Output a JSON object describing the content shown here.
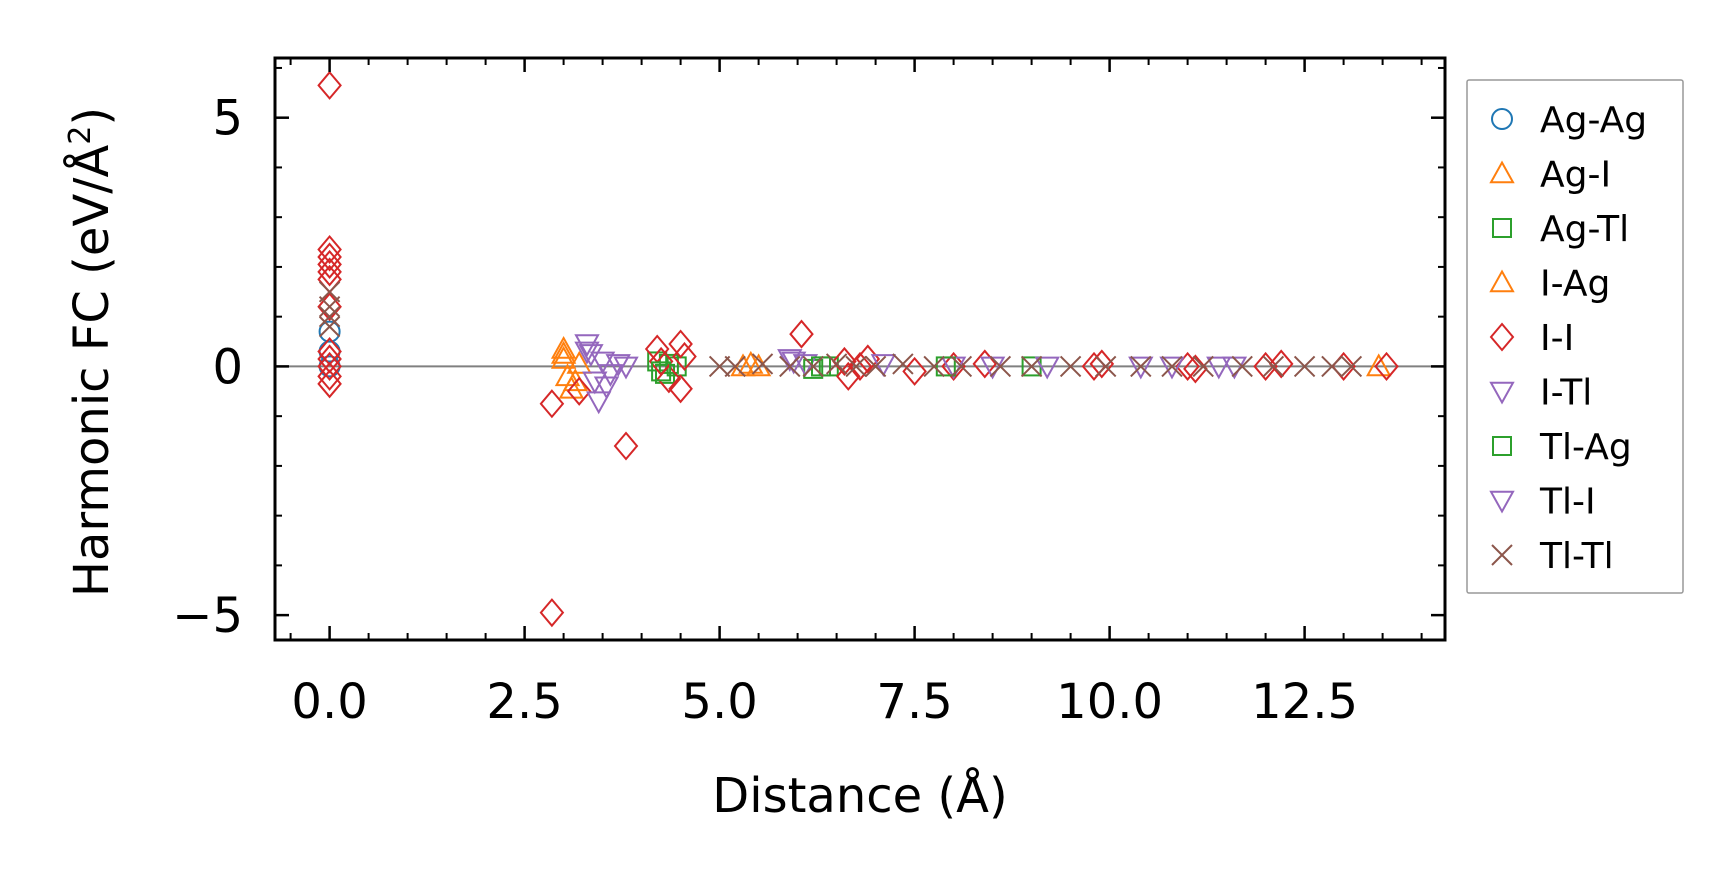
{
  "chart_data": {
    "type": "scatter",
    "title": "",
    "xlabel": "Distance (Å)",
    "ylabel_main": "Harmonic FC (eV/Å",
    "ylabel_sup": "2",
    "ylabel_close": ")",
    "xlim": [
      -0.7,
      14.3
    ],
    "ylim": [
      -5.5,
      6.2
    ],
    "x_ticks": [
      0.0,
      2.5,
      5.0,
      7.5,
      10.0,
      12.5
    ],
    "x_tick_labels": [
      "0.0",
      "2.5",
      "5.0",
      "7.5",
      "10.0",
      "12.5"
    ],
    "y_ticks": [
      -5,
      0,
      5
    ],
    "y_tick_labels": [
      "−5",
      "0",
      "5"
    ],
    "zero_line": true,
    "legend_position": "right, outside plot",
    "series": [
      {
        "name": "Ag-Ag",
        "marker": "circle",
        "color": "#1f77b4",
        "x": [
          0.0,
          0.0,
          0.0
        ],
        "y": [
          0.7,
          0.3,
          0.0
        ]
      },
      {
        "name": "Ag-I",
        "marker": "triangle-up",
        "color": "#ff7f0e",
        "x": [
          3.0,
          3.0,
          3.05,
          3.1,
          3.2,
          5.4,
          5.5,
          13.45
        ],
        "y": [
          0.35,
          0.15,
          -0.2,
          -0.45,
          0.05,
          0.05,
          0.0,
          0.0
        ]
      },
      {
        "name": "Ag-Tl",
        "marker": "square",
        "color": "#2ca02c",
        "x": [
          4.2,
          4.3,
          4.35,
          4.45,
          6.2,
          6.4,
          9.0
        ],
        "y": [
          0.1,
          -0.15,
          0.05,
          0.0,
          -0.05,
          0.0,
          0.0
        ]
      },
      {
        "name": "I-Ag",
        "marker": "triangle-up",
        "color": "#ff7f0e",
        "x": [
          3.0,
          3.15,
          5.3
        ],
        "y": [
          0.25,
          -0.3,
          0.0
        ]
      },
      {
        "name": "I-I",
        "marker": "diamond",
        "color": "#d62728",
        "x": [
          0.0,
          0.0,
          0.0,
          0.0,
          0.0,
          0.0,
          0.0,
          0.0,
          0.0,
          0.0,
          0.0,
          0.0,
          2.85,
          2.85,
          3.2,
          3.8,
          4.2,
          4.25,
          4.35,
          4.5,
          4.5,
          4.55,
          6.05,
          6.6,
          6.65,
          6.8,
          6.9,
          7.5,
          8.0,
          8.4,
          9.8,
          9.9,
          11.0,
          11.1,
          12.0,
          12.2,
          13.0,
          13.55
        ],
        "y": [
          5.65,
          2.35,
          2.2,
          2.05,
          1.9,
          1.75,
          0.3,
          0.15,
          0.0,
          -0.2,
          -0.35,
          1.2,
          -4.95,
          -0.75,
          -0.5,
          -1.6,
          0.35,
          0.1,
          -0.25,
          0.45,
          -0.45,
          0.2,
          0.65,
          0.1,
          -0.2,
          0.0,
          0.15,
          -0.1,
          0.0,
          0.05,
          0.0,
          0.05,
          0.0,
          -0.05,
          0.0,
          0.05,
          0.0,
          0.0
        ]
      },
      {
        "name": "I-Tl",
        "marker": "triangle-down",
        "color": "#9467bd",
        "x": [
          3.3,
          3.35,
          3.4,
          3.45,
          3.5,
          3.6,
          3.7,
          3.8,
          5.9,
          6.1,
          7.1,
          8.0,
          9.2,
          10.8,
          11.6
        ],
        "y": [
          0.45,
          0.25,
          -0.3,
          -0.7,
          0.1,
          -0.15,
          0.05,
          0.0,
          0.15,
          0.05,
          0.05,
          0.0,
          0.0,
          0.0,
          0.0
        ]
      },
      {
        "name": "Tl-Ag",
        "marker": "square",
        "color": "#2ca02c",
        "x": [
          4.25,
          6.3,
          7.9
        ],
        "y": [
          -0.1,
          0.0,
          0.0
        ]
      },
      {
        "name": "Tl-I",
        "marker": "triangle-down",
        "color": "#9467bd",
        "x": [
          3.3,
          3.55,
          5.95,
          8.5,
          10.4,
          11.4
        ],
        "y": [
          0.3,
          -0.4,
          0.1,
          0.0,
          0.0,
          0.0
        ]
      },
      {
        "name": "Tl-Tl",
        "marker": "x",
        "color": "#8c564b",
        "x": [
          0.0,
          0.0,
          0.0,
          0.0,
          5.0,
          5.2,
          5.55,
          5.9,
          6.2,
          6.5,
          6.75,
          7.0,
          7.35,
          7.75,
          8.1,
          8.6,
          9.0,
          9.5,
          9.95,
          10.4,
          10.8,
          11.2,
          11.7,
          12.1,
          12.5,
          12.85,
          13.1
        ],
        "y": [
          1.5,
          1.2,
          1.0,
          0.8,
          0.0,
          0.0,
          0.05,
          0.0,
          0.0,
          0.05,
          0.0,
          0.0,
          0.05,
          0.0,
          0.0,
          0.0,
          0.0,
          0.0,
          0.0,
          0.0,
          0.0,
          0.0,
          0.0,
          0.0,
          0.0,
          0.0,
          0.0
        ]
      }
    ]
  }
}
